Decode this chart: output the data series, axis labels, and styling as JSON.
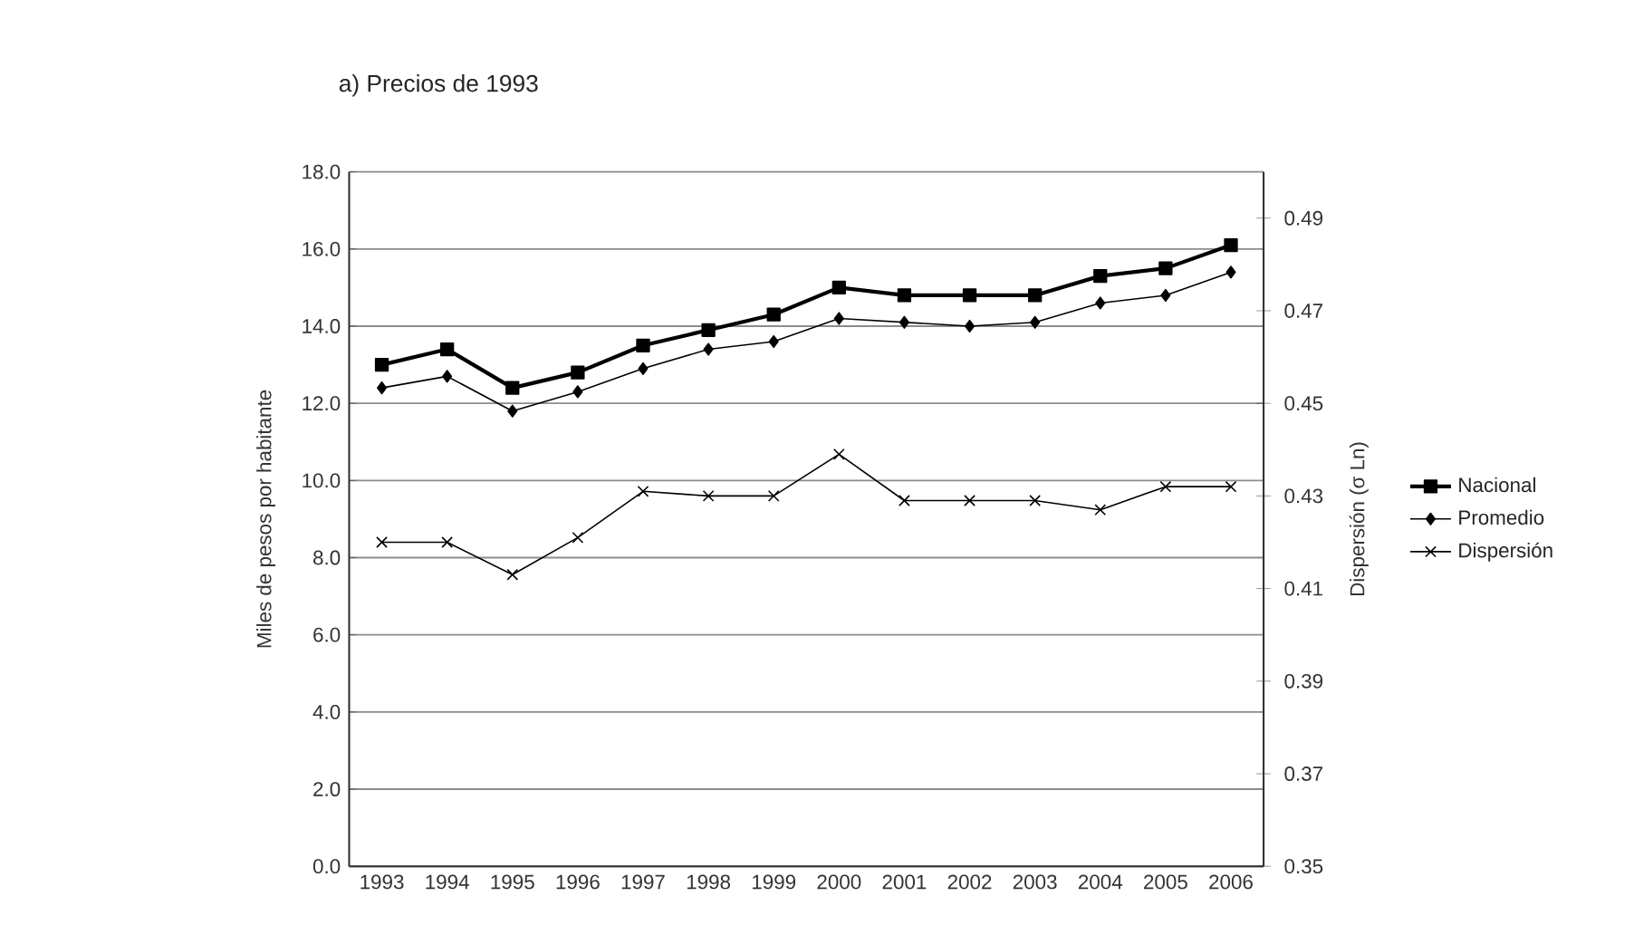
{
  "chart_data": {
    "type": "line",
    "title": "a) Precios de 1993",
    "ylabel": "Miles de pesos por habitante",
    "y2label": "Dispersión (σ Ln)",
    "categories": [
      "1993",
      "1994",
      "1995",
      "1996",
      "1997",
      "1998",
      "1999",
      "2000",
      "2001",
      "2002",
      "2003",
      "2004",
      "2005",
      "2006"
    ],
    "series": [
      {
        "name": "Nacional",
        "color": "#000000",
        "marker": "square",
        "values": [
          13.0,
          13.4,
          12.4,
          12.8,
          13.5,
          13.9,
          14.3,
          15.0,
          14.8,
          14.8,
          14.8,
          15.3,
          15.5,
          16.1
        ]
      },
      {
        "name": "Promedio",
        "color": "#000000",
        "marker": "diamond",
        "values": [
          12.4,
          12.7,
          11.8,
          12.3,
          12.9,
          13.4,
          13.6,
          14.2,
          14.1,
          14.0,
          14.1,
          14.6,
          14.8,
          15.4
        ]
      },
      {
        "name": "Dispersión",
        "color": "#000000",
        "marker": "cross",
        "axis": "y2",
        "values": [
          0.42,
          0.42,
          0.413,
          0.421,
          0.431,
          0.43,
          0.43,
          0.439,
          0.429,
          0.429,
          0.429,
          0.427,
          0.432,
          0.432
        ]
      }
    ],
    "ylim": [
      0,
      18
    ],
    "yticks": [
      {
        "value": 0,
        "label": "0.0"
      },
      {
        "value": 2,
        "label": "2.0"
      },
      {
        "value": 4,
        "label": "4.0"
      },
      {
        "value": 6,
        "label": "6.0"
      },
      {
        "value": 8,
        "label": "8.0"
      },
      {
        "value": 10,
        "label": "10.0"
      },
      {
        "value": 12,
        "label": "12.0"
      },
      {
        "value": 14,
        "label": "14.0"
      },
      {
        "value": 16,
        "label": "16.0"
      },
      {
        "value": 18,
        "label": "18.0"
      }
    ],
    "y2lim": [
      0.35,
      0.5
    ],
    "y2ticks": [
      0.35,
      0.37,
      0.39,
      0.41,
      0.43,
      0.45,
      0.47,
      0.49
    ],
    "grid": "y",
    "legend": "right",
    "line_style": "solid"
  }
}
